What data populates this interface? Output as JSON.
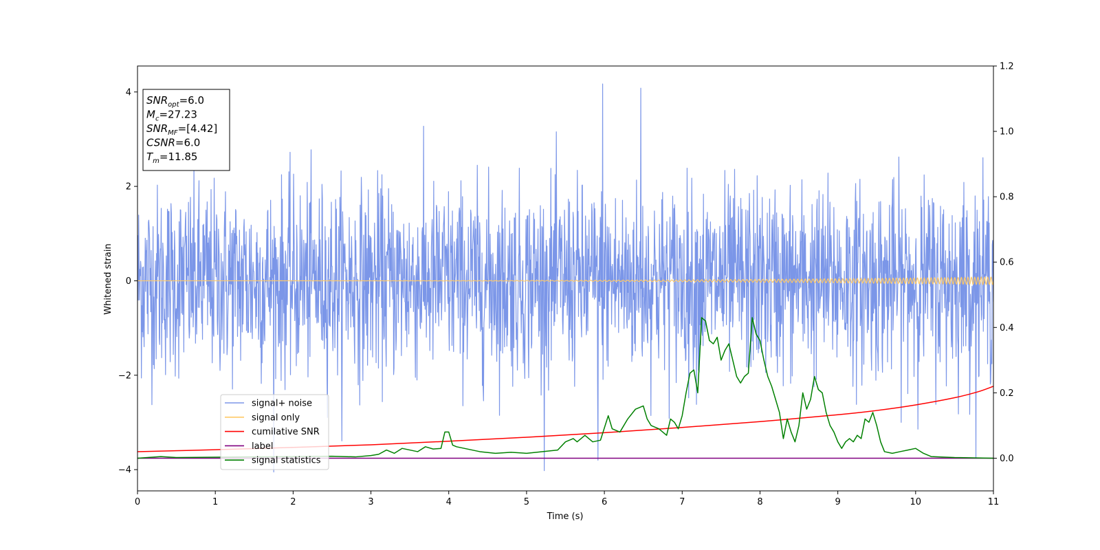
{
  "chart_data": {
    "type": "line",
    "xlabel": "Time (s)",
    "ylabel": "Whitened strain",
    "xlim": [
      0,
      11
    ],
    "ylim": [
      -4.45,
      4.55
    ],
    "y2lim": [
      -0.1,
      1.2
    ],
    "x_ticks": [
      0,
      1,
      2,
      3,
      4,
      5,
      6,
      7,
      8,
      9,
      10,
      11
    ],
    "y_ticks": [
      -4,
      -2,
      0,
      2,
      4
    ],
    "y2_ticks": [
      "0.0",
      "0.2",
      "0.4",
      "0.6",
      "0.8",
      "1.0",
      "1.2"
    ],
    "grid": false,
    "legend_position": "lower-left",
    "legend": [
      {
        "label": "signal+ noise",
        "color": "#7b96e8"
      },
      {
        "label": "signal only",
        "color": "#ffc966"
      },
      {
        "label": "cumilative SNR",
        "color": "#ff0000"
      },
      {
        "label": "label",
        "color": "#800080"
      },
      {
        "label": "signal statistics",
        "color": "#008000"
      }
    ],
    "info_box": [
      {
        "var": "SNR",
        "sub": "opt",
        "value": "=6.0"
      },
      {
        "var": "M",
        "sub": "c",
        "value": "=27.23"
      },
      {
        "var": "SNR",
        "sub": "MF",
        "value": "=[4.42]"
      },
      {
        "var": "CSNR",
        "sub": "",
        "value": "=6.0"
      },
      {
        "var": "T",
        "sub": "m",
        "value": "=11.85"
      }
    ],
    "series": [
      {
        "name": "signal+ noise",
        "axis": "left",
        "style": "noise",
        "sigma": 1.0,
        "sample_count": 2200,
        "range": [
          -4.05,
          4.17
        ],
        "notable_peaks": [
          {
            "x": 5.98,
            "y": 4.17
          },
          {
            "x": 6.47,
            "y": 4.08
          },
          {
            "x": 1.75,
            "y": -4.05
          },
          {
            "x": 5.92,
            "y": -3.8
          }
        ]
      },
      {
        "name": "signal only",
        "axis": "left",
        "style": "chirp",
        "start_amplitude": 0.0,
        "end_amplitude": 0.08,
        "start_frequency_hz": 8,
        "end_frequency_hz": 16
      },
      {
        "name": "cumilative SNR",
        "axis": "right",
        "x": [
          0,
          1,
          2,
          3,
          4,
          5,
          6,
          7,
          8,
          9,
          9.5,
          10,
          10.5,
          10.8,
          11
        ],
        "values": [
          0.02,
          0.026,
          0.033,
          0.041,
          0.052,
          0.064,
          0.078,
          0.094,
          0.112,
          0.133,
          0.146,
          0.163,
          0.185,
          0.203,
          0.22
        ]
      },
      {
        "name": "label",
        "axis": "right",
        "x": [
          0,
          11
        ],
        "values": [
          0.0,
          0.0
        ]
      },
      {
        "name": "signal statistics",
        "axis": "right",
        "x": [
          0,
          0.3,
          0.5,
          1.0,
          1.5,
          2.0,
          2.5,
          2.8,
          3.0,
          3.1,
          3.2,
          3.3,
          3.4,
          3.6,
          3.7,
          3.8,
          3.9,
          3.95,
          4.0,
          4.05,
          4.1,
          4.2,
          4.4,
          4.6,
          4.8,
          5.0,
          5.2,
          5.4,
          5.5,
          5.6,
          5.65,
          5.75,
          5.85,
          5.95,
          6.05,
          6.1,
          6.2,
          6.3,
          6.4,
          6.5,
          6.55,
          6.6,
          6.7,
          6.8,
          6.85,
          6.9,
          6.95,
          7.0,
          7.05,
          7.1,
          7.15,
          7.2,
          7.25,
          7.3,
          7.35,
          7.4,
          7.45,
          7.5,
          7.55,
          7.6,
          7.65,
          7.7,
          7.75,
          7.8,
          7.85,
          7.9,
          7.95,
          8.0,
          8.05,
          8.1,
          8.15,
          8.2,
          8.25,
          8.3,
          8.35,
          8.4,
          8.45,
          8.5,
          8.55,
          8.6,
          8.65,
          8.7,
          8.75,
          8.8,
          8.85,
          8.9,
          8.95,
          9.0,
          9.05,
          9.1,
          9.15,
          9.2,
          9.25,
          9.3,
          9.35,
          9.4,
          9.45,
          9.5,
          9.55,
          9.6,
          9.7,
          9.8,
          9.9,
          10.0,
          10.1,
          10.2,
          10.5,
          11
        ],
        "values": [
          0.0,
          0.005,
          0.002,
          0.003,
          0.004,
          0.005,
          0.006,
          0.004,
          0.008,
          0.012,
          0.025,
          0.015,
          0.03,
          0.02,
          0.035,
          0.028,
          0.03,
          0.08,
          0.08,
          0.04,
          0.035,
          0.03,
          0.02,
          0.015,
          0.018,
          0.015,
          0.02,
          0.025,
          0.05,
          0.06,
          0.05,
          0.07,
          0.05,
          0.055,
          0.13,
          0.09,
          0.08,
          0.12,
          0.15,
          0.16,
          0.12,
          0.1,
          0.09,
          0.07,
          0.12,
          0.11,
          0.09,
          0.13,
          0.2,
          0.26,
          0.27,
          0.2,
          0.43,
          0.42,
          0.36,
          0.35,
          0.37,
          0.3,
          0.33,
          0.35,
          0.3,
          0.25,
          0.23,
          0.25,
          0.26,
          0.43,
          0.38,
          0.36,
          0.3,
          0.25,
          0.22,
          0.18,
          0.14,
          0.06,
          0.12,
          0.08,
          0.05,
          0.1,
          0.2,
          0.15,
          0.18,
          0.25,
          0.21,
          0.2,
          0.14,
          0.1,
          0.08,
          0.05,
          0.03,
          0.05,
          0.06,
          0.05,
          0.07,
          0.06,
          0.12,
          0.11,
          0.14,
          0.1,
          0.05,
          0.02,
          0.015,
          0.02,
          0.025,
          0.03,
          0.015,
          0.005,
          0.002,
          0.0
        ]
      }
    ]
  }
}
